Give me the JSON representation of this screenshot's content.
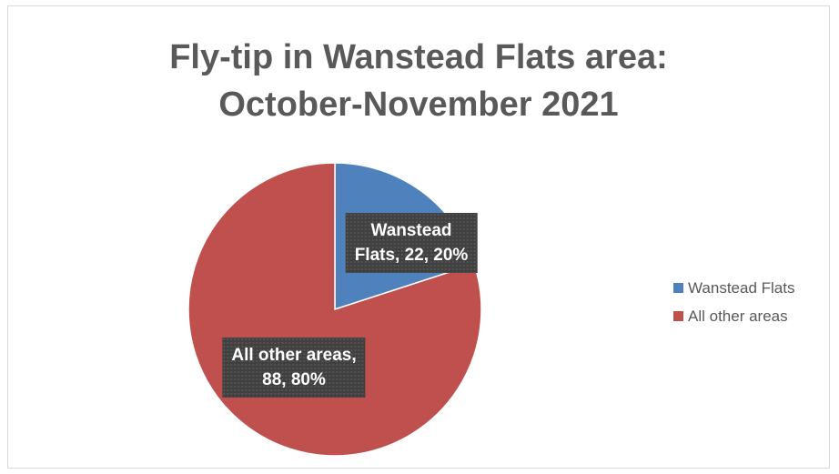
{
  "chart_data": {
    "type": "pie",
    "title_lines": [
      "Fly-tip in Wanstead Flats area:",
      "October-November 2021"
    ],
    "slices": [
      {
        "name": "Wanstead Flats",
        "value": 22,
        "percent": "20%",
        "color": "#4f81bd",
        "label_lines": [
          "Wanstead",
          "Flats, 22, 20%"
        ]
      },
      {
        "name": "All other areas",
        "value": 88,
        "percent": "80%",
        "color": "#c0504d",
        "label_lines": [
          "All other areas,",
          "88, 80%"
        ]
      }
    ],
    "legend_position": "right"
  }
}
